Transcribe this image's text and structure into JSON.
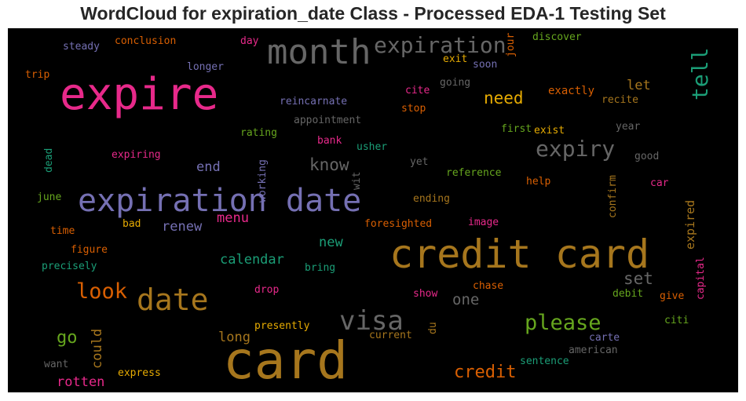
{
  "title": "WordCloud for expiration_date Class - Processed EDA-1 Testing Set",
  "colors": {
    "pink": "#e7298a",
    "gray": "#666666",
    "gold": "#a6761d",
    "purple": "#7570b3",
    "orange": "#d95f02",
    "green": "#1b9e77",
    "lime": "#66a61e",
    "yellow": "#e6ab02"
  },
  "words": {
    "expire": "expire",
    "month": "month",
    "expiration": "expiration",
    "tell": "tell",
    "need": "need",
    "let": "let",
    "exactly": "exactly",
    "recite": "recite",
    "expiry": "expiry",
    "know": "know",
    "end": "end",
    "expiration_date": "expiration date",
    "credit_card": "credit card",
    "date": "date",
    "look": "look",
    "visa": "visa",
    "please": "please",
    "card": "card",
    "credit": "credit",
    "go": "go",
    "could": "could",
    "set": "set",
    "one": "one",
    "new": "new",
    "calendar": "calendar",
    "menu": "menu",
    "renew": "renew",
    "rotten": "rotten",
    "long": "long",
    "steady": "steady",
    "conclusion": "conclusion",
    "day": "day",
    "trip": "trip",
    "longer": "longer",
    "exit": "exit",
    "soon": "soon",
    "jour": "jour",
    "discover": "discover",
    "going": "going",
    "cite": "cite",
    "stop": "stop",
    "reincarnate": "reincarnate",
    "appointment": "appointment",
    "rating": "rating",
    "bank": "bank",
    "usher": "usher",
    "first": "first",
    "exist": "exist",
    "year": "year",
    "dead": "dead",
    "expiring": "expiring",
    "working": "working",
    "wit": "wit",
    "yet": "yet",
    "good": "good",
    "reference": "reference",
    "help": "help",
    "confirm": "confirm",
    "car": "car",
    "june": "june",
    "ending": "ending",
    "expired": "expired",
    "time": "time",
    "bad": "bad",
    "foresighted": "foresighted",
    "image": "image",
    "figure": "figure",
    "capital": "capital",
    "precisely": "precisely",
    "bring": "bring",
    "drop": "drop",
    "chase": "chase",
    "show": "show",
    "debit": "debit",
    "give": "give",
    "presently": "presently",
    "du": "du",
    "citi": "citi",
    "current": "current",
    "carte": "carte",
    "american": "american",
    "want": "want",
    "express": "express",
    "sentence": "sentence"
  }
}
